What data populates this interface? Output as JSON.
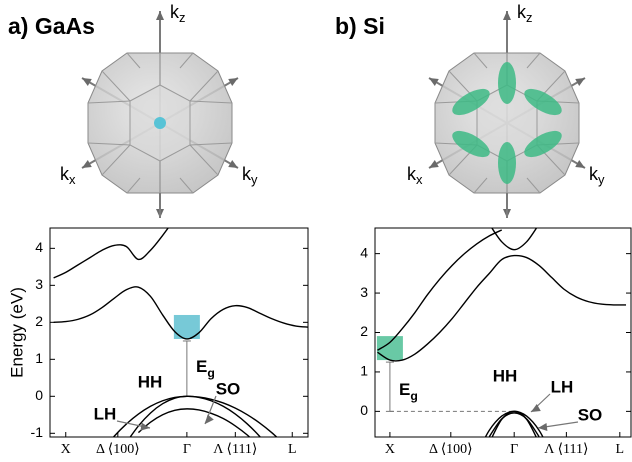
{
  "chart_data": [
    {
      "type": "line",
      "title": "a) GaAs",
      "y_label": "Energy (eV)",
      "x": [
        -1.1,
        -1.0,
        -0.9,
        -0.8,
        -0.7,
        -0.6,
        -0.5,
        -0.4,
        -0.3,
        -0.2,
        -0.1,
        0,
        0.1,
        0.2,
        0.3,
        0.4,
        0.5,
        0.6,
        0.7,
        0.8,
        0.9,
        1.0
      ],
      "xlim": [
        -1.13,
        1.0
      ],
      "xticks": [
        {
          "value": -1,
          "label": "X"
        },
        {
          "value": -0.57,
          "label": "Δ ⟨100⟩"
        },
        {
          "value": 0,
          "label": "Γ"
        },
        {
          "value": 0.4,
          "label": "Λ ⟨111⟩"
        },
        {
          "value": 0.87,
          "label": "L"
        }
      ],
      "ylim": [
        -1.1,
        4.55
      ],
      "yticks": [
        -1,
        0,
        1,
        2,
        3,
        4
      ],
      "series": [
        {
          "color": "#000000",
          "values": [
            2.0,
            2.02,
            2.08,
            2.2,
            2.4,
            2.65,
            2.88,
            2.95,
            2.7,
            2.2,
            1.75,
            1.55,
            1.72,
            2.1,
            2.35,
            2.45,
            2.4,
            2.25,
            2.1,
            1.98,
            1.9,
            1.87
          ]
        },
        {
          "color": "#000000",
          "values": [
            3.2,
            3.35,
            3.55,
            3.75,
            3.95,
            4.08,
            4.05,
            3.7,
            3.95,
            4.35,
            4.8,
            null,
            null,
            null,
            null,
            null,
            null,
            null,
            null,
            null,
            null,
            null
          ]
        },
        {
          "color": "#000000",
          "values": [
            null,
            null,
            null,
            null,
            -1.47,
            -1.08,
            -0.75,
            -0.48,
            -0.27,
            -0.12,
            -0.03,
            0,
            -0.02,
            -0.08,
            -0.18,
            -0.32,
            -0.5,
            -0.72,
            -0.98,
            -1.28,
            null,
            null
          ]
        },
        {
          "color": "#000000",
          "values": [
            null,
            null,
            null,
            null,
            null,
            null,
            -1.25,
            -0.8,
            -0.45,
            -0.2,
            -0.05,
            0,
            -0.03,
            -0.12,
            -0.27,
            -0.48,
            -0.75,
            -1.08,
            -1.47,
            null,
            null,
            null
          ]
        },
        {
          "color": "#000000",
          "values": [
            null,
            null,
            null,
            null,
            null,
            null,
            null,
            -0.98,
            -0.7,
            -0.5,
            -0.38,
            -0.34,
            -0.37,
            -0.46,
            -0.6,
            -0.8,
            -1.05,
            -1.36,
            null,
            null,
            null,
            null
          ]
        }
      ],
      "annotations": [
        "HH",
        "LH",
        "SO"
      ],
      "gap_label": {
        "text": "E",
        "sub": "g"
      },
      "highlight_color": "#5fbfd0",
      "brillouin_zone": {
        "axes": [
          {
            "text": "k",
            "sub": "z"
          },
          {
            "text": "k",
            "sub": "x"
          },
          {
            "text": "k",
            "sub": "y"
          }
        ],
        "valley_color": "#58c3d6"
      }
    },
    {
      "type": "line",
      "title": "b) Si",
      "x": [
        -1.1,
        -1.0,
        -0.9,
        -0.8,
        -0.7,
        -0.6,
        -0.5,
        -0.4,
        -0.3,
        -0.2,
        -0.1,
        0,
        0.1,
        0.2,
        0.3,
        0.4,
        0.5,
        0.6,
        0.7,
        0.8,
        0.9
      ],
      "xlim": [
        -1.12,
        0.94
      ],
      "xticks": [
        {
          "value": -1,
          "label": "X"
        },
        {
          "value": -0.51,
          "label": "Δ ⟨100⟩"
        },
        {
          "value": 0,
          "label": "Γ"
        },
        {
          "value": 0.42,
          "label": "Λ ⟨111⟩"
        },
        {
          "value": 0.85,
          "label": "L"
        }
      ],
      "ylim": [
        -0.65,
        4.65
      ],
      "yticks": [
        0,
        1,
        2,
        3,
        4
      ],
      "series": [
        {
          "color": "#000000",
          "values": [
            1.5,
            1.3,
            1.3,
            1.45,
            1.7,
            2.0,
            2.35,
            2.75,
            3.15,
            3.5,
            3.85,
            3.95,
            3.9,
            3.7,
            3.4,
            3.1,
            2.9,
            2.78,
            2.72,
            2.7,
            2.7
          ]
        },
        {
          "color": "#000000",
          "values": [
            1.55,
            1.75,
            2.1,
            2.5,
            2.95,
            3.35,
            3.7,
            4.0,
            4.25,
            4.45,
            4.6,
            null,
            null,
            null,
            null,
            null,
            null,
            null,
            null,
            null,
            null
          ]
        },
        {
          "color": "#000000",
          "values": [
            null,
            null,
            null,
            null,
            null,
            null,
            null,
            null,
            null,
            4.75,
            4.3,
            4.1,
            4.3,
            4.75,
            null,
            null,
            null,
            null,
            null,
            null,
            null
          ]
        },
        {
          "color": "#000000",
          "values": [
            null,
            null,
            null,
            null,
            null,
            null,
            null,
            null,
            -1.08,
            -0.48,
            -0.12,
            0,
            -0.12,
            -0.48,
            -1.08,
            null,
            null,
            null,
            null,
            null,
            null
          ]
        },
        {
          "color": "#000000",
          "values": [
            null,
            null,
            null,
            null,
            null,
            null,
            null,
            null,
            null,
            -0.8,
            -0.2,
            0,
            -0.2,
            -0.8,
            null,
            null,
            null,
            null,
            null,
            null,
            null
          ]
        },
        {
          "color": "#000000",
          "values": [
            null,
            null,
            null,
            null,
            null,
            null,
            null,
            null,
            null,
            -0.64,
            -0.19,
            -0.04,
            -0.19,
            -0.64,
            null,
            null,
            null,
            null,
            null,
            null,
            null
          ]
        }
      ],
      "annotations": [
        "HH",
        "LH",
        "SO"
      ],
      "gap_label": {
        "text": "E",
        "sub": "g"
      },
      "highlight_color": "#4fbf95",
      "brillouin_zone": {
        "axes": [
          {
            "text": "k",
            "sub": "z"
          },
          {
            "text": "k",
            "sub": "x"
          },
          {
            "text": "k",
            "sub": "y"
          }
        ],
        "valley_color": "#3dba85"
      }
    }
  ]
}
